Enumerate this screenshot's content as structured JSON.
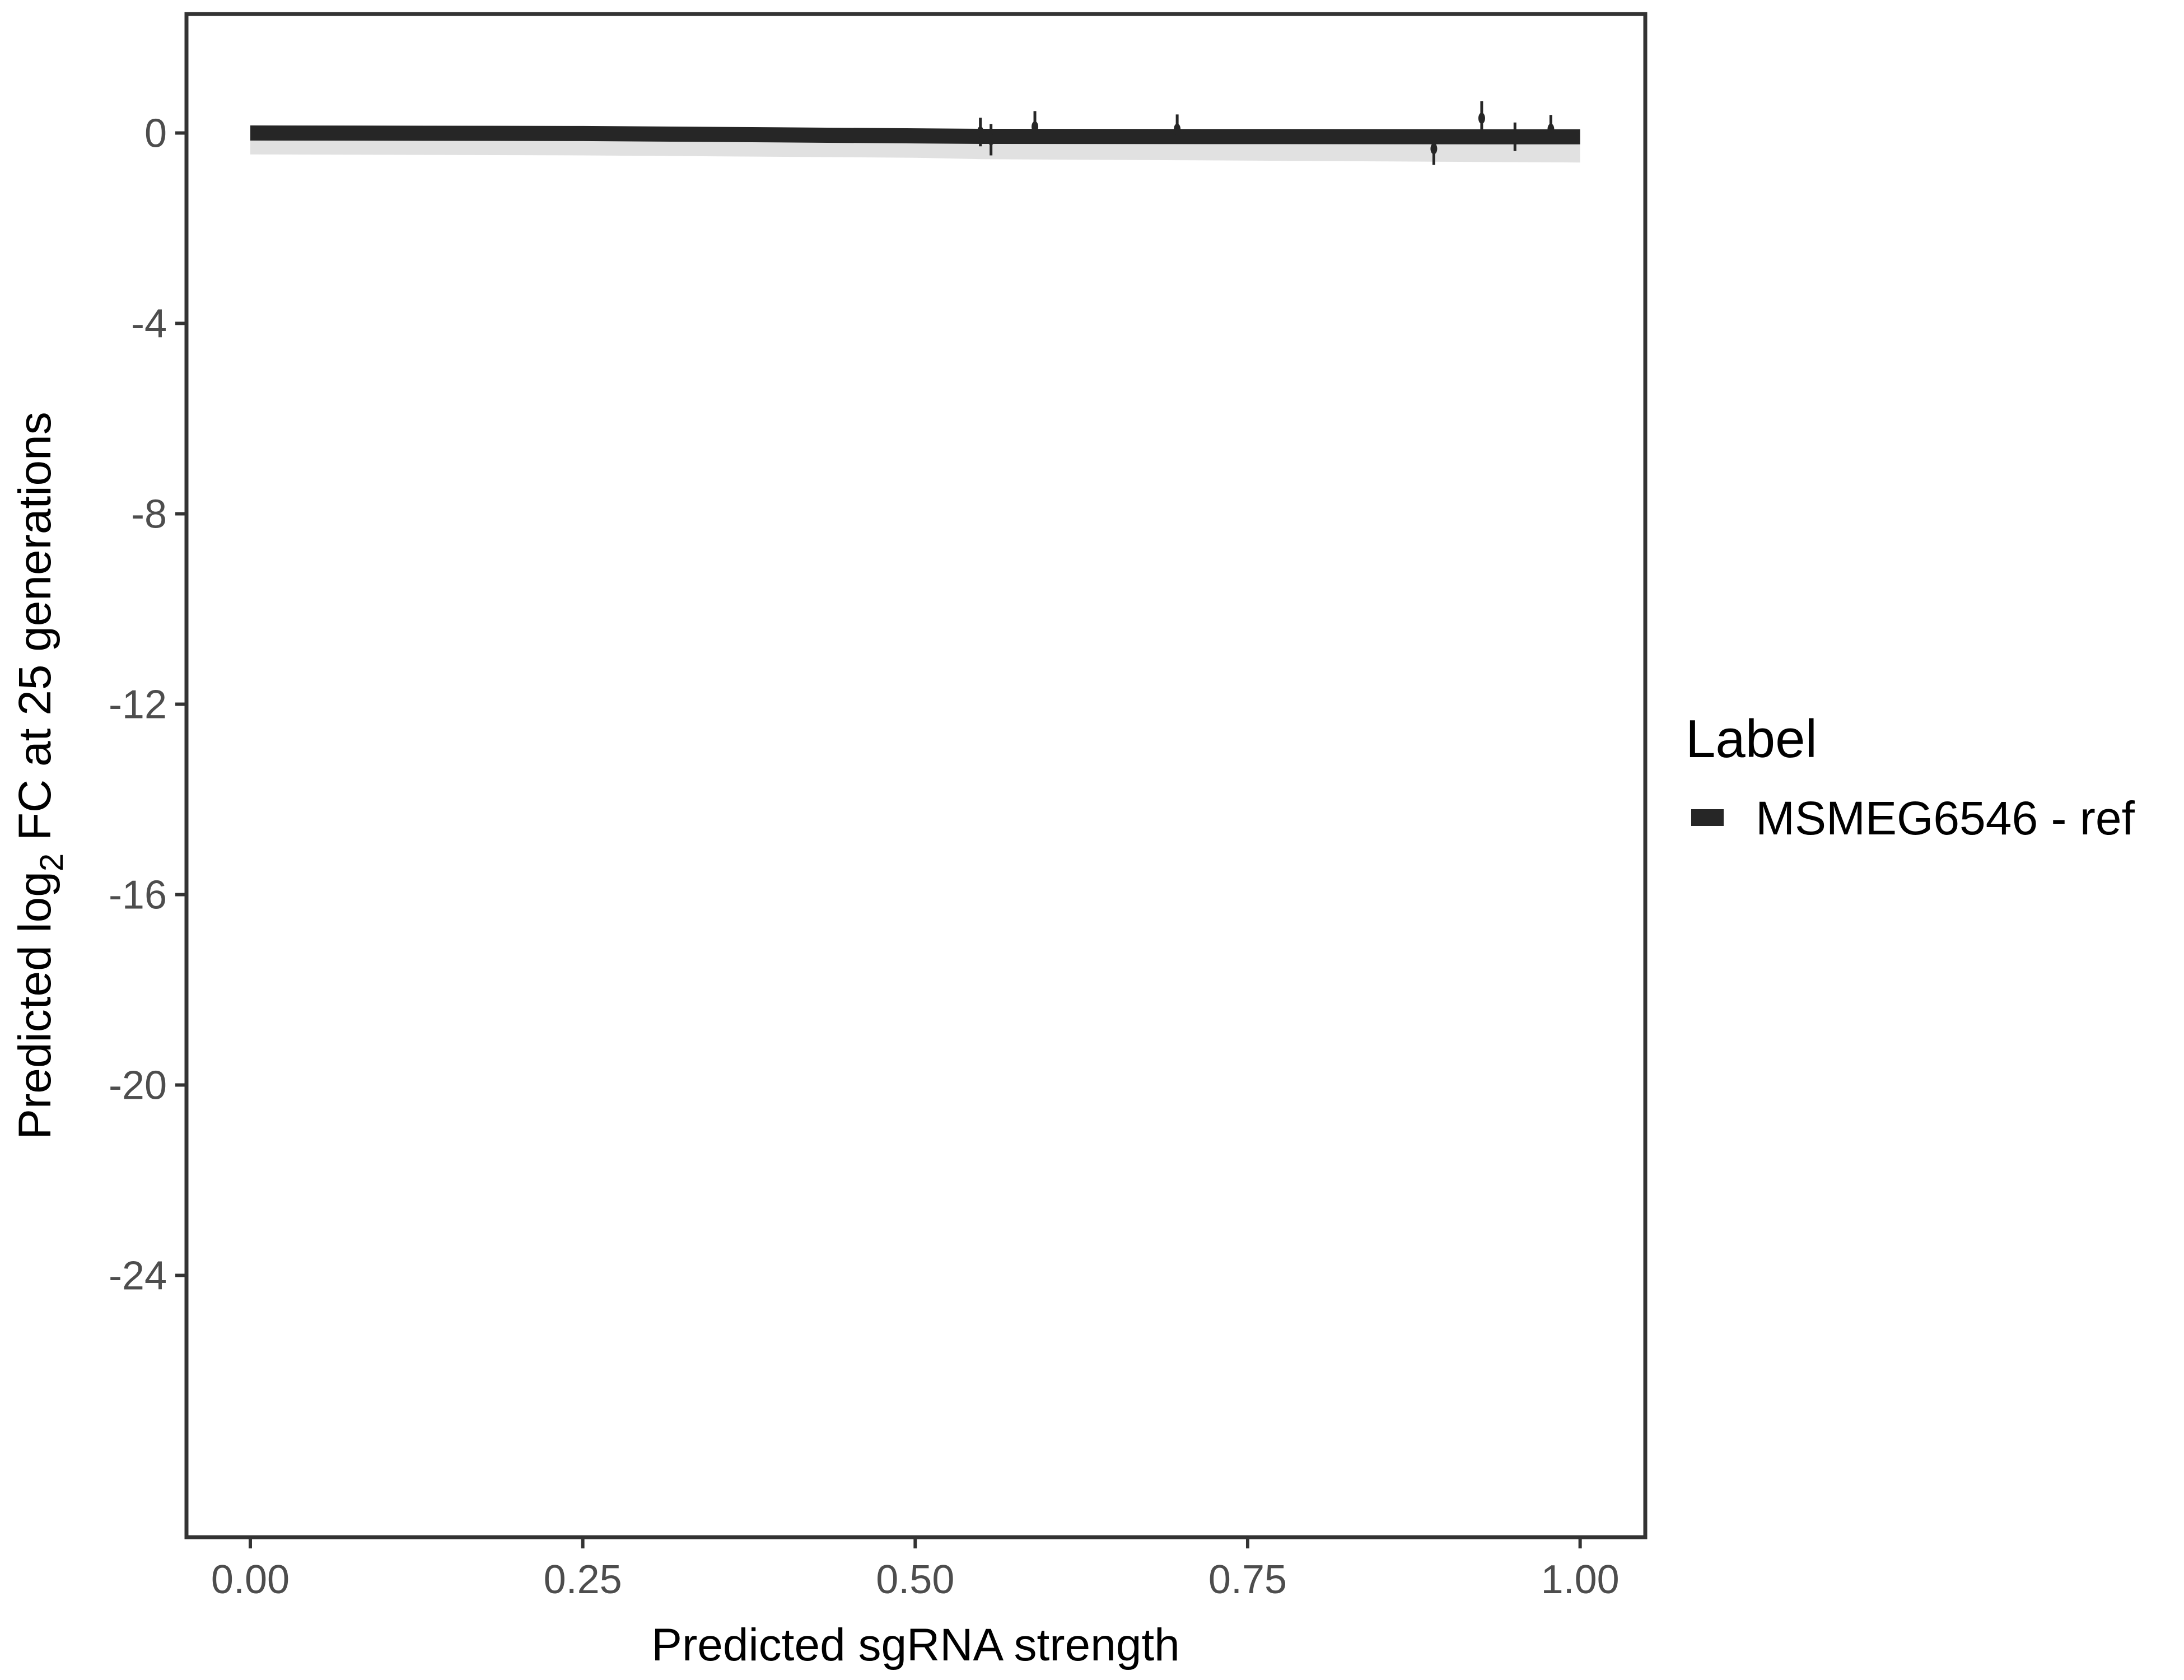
{
  "chart_data": {
    "type": "line",
    "title": "",
    "xlabel": "Predicted sgRNA strength",
    "ylabel": {
      "prefix": "Predicted  log",
      "subscript": "2",
      "suffix": " FC at 25 generations"
    },
    "xlim": [
      -0.048,
      1.049
    ],
    "ylim": [
      -29.5,
      2.5
    ],
    "x_ticks": [
      {
        "value": 0,
        "label": "0.00"
      },
      {
        "value": 0.25,
        "label": "0.25"
      },
      {
        "value": 0.5,
        "label": "0.50"
      },
      {
        "value": 0.75,
        "label": "0.75"
      },
      {
        "value": 1,
        "label": "1.00"
      }
    ],
    "y_ticks": [
      {
        "value": 0,
        "label": "0"
      },
      {
        "value": -4,
        "label": "-4"
      },
      {
        "value": -8,
        "label": "-8"
      },
      {
        "value": -12,
        "label": "-12"
      },
      {
        "value": -16,
        "label": "-16"
      },
      {
        "value": -20,
        "label": "-20"
      },
      {
        "value": -24,
        "label": "-24"
      }
    ],
    "grid": false,
    "legend": {
      "title": "Label",
      "placement": "right",
      "entries": [
        "MSMEG6546 - ref"
      ]
    },
    "series": [
      {
        "name": "MSMEG6546 - ref",
        "color": "#262626",
        "fit": {
          "x": [
            0,
            0.25,
            0.5,
            0.55,
            0.75,
            1
          ],
          "y": [
            0,
            -0.01,
            -0.06,
            -0.07,
            -0.075,
            -0.08
          ],
          "ribbon_lower": [
            -0.45,
            -0.47,
            -0.52,
            -0.55,
            -0.58,
            -0.62
          ]
        },
        "points": [
          {
            "x": 0.549,
            "y": 0.02,
            "err": 0.3
          },
          {
            "x": 0.557,
            "y": -0.14,
            "err": 0.33
          },
          {
            "x": 0.59,
            "y": 0.13,
            "err": 0.33
          },
          {
            "x": 0.697,
            "y": 0.08,
            "err": 0.31
          },
          {
            "x": 0.89,
            "y": -0.33,
            "err": 0.34
          },
          {
            "x": 0.926,
            "y": 0.31,
            "err": 0.36
          },
          {
            "x": 0.951,
            "y": -0.08,
            "err": 0.3
          },
          {
            "x": 0.978,
            "y": 0.08,
            "err": 0.3
          }
        ]
      }
    ]
  }
}
